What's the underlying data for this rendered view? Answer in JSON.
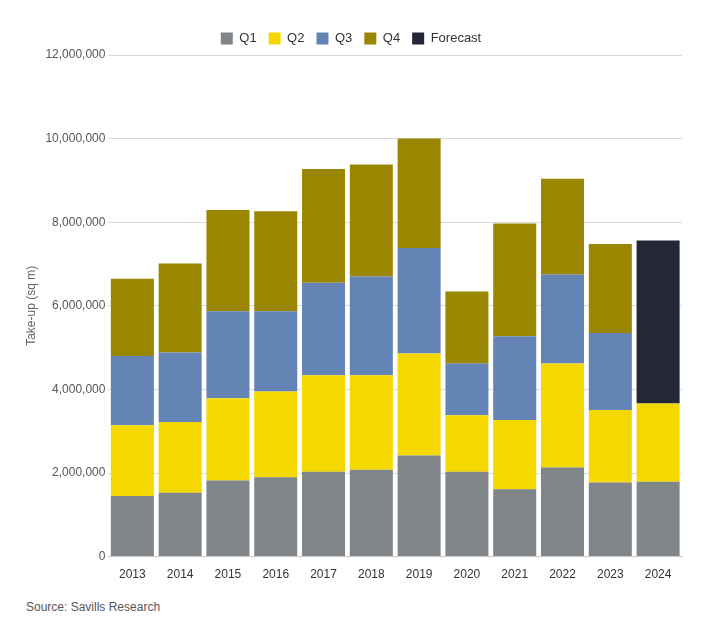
{
  "chart_data": {
    "type": "bar",
    "stacked": true,
    "grid": true,
    "legend": "top",
    "y_label": "Take-up (sq m)",
    "source": "Source: Savills Research",
    "categories": [
      "2013",
      "2014",
      "2015",
      "2016",
      "2017",
      "2018",
      "2019",
      "2020",
      "2021",
      "2022",
      "2023",
      "2024"
    ],
    "series": [
      {
        "name": "Q1",
        "color": "#7f8589",
        "values": [
          1450000,
          1530000,
          1820000,
          1900000,
          2030000,
          2080000,
          2420000,
          2030000,
          1610000,
          2130000,
          1770000,
          1790000
        ]
      },
      {
        "name": "Q2",
        "color": "#f5d800",
        "values": [
          1690000,
          1690000,
          1970000,
          2050000,
          2310000,
          2260000,
          2440000,
          1350000,
          1660000,
          2490000,
          1740000,
          1870000
        ]
      },
      {
        "name": "Q3",
        "color": "#6384b5",
        "values": [
          1660000,
          1660000,
          2080000,
          1920000,
          2210000,
          2360000,
          2520000,
          1240000,
          2000000,
          2130000,
          1840000,
          null
        ]
      },
      {
        "name": "Q4",
        "color": "#9a8600",
        "values": [
          1850000,
          2130000,
          2420000,
          2390000,
          2720000,
          2680000,
          2620000,
          1720000,
          2700000,
          2290000,
          2130000,
          null
        ]
      },
      {
        "name": "Forecast",
        "color": "#242737",
        "values": [
          null,
          null,
          null,
          null,
          null,
          null,
          null,
          null,
          null,
          null,
          null,
          3900000
        ]
      }
    ],
    "ylim": [
      0,
      12000000
    ],
    "yticks": [
      0,
      {
        "value": 2000000,
        "label": "2,000,000"
      },
      {
        "value": 4000000,
        "label": "4,000,000"
      },
      {
        "value": 6000000,
        "label": "6,000,000"
      },
      {
        "value": 8000000,
        "label": "8,000,000"
      },
      {
        "value": 10000000,
        "label": "10,000,000"
      },
      {
        "value": 12000000,
        "label": "12,000,000"
      }
    ]
  }
}
